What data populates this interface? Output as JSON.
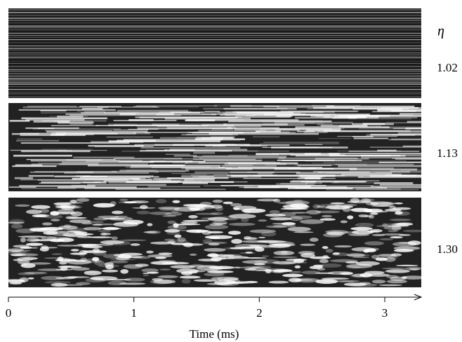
{
  "eta_symbol": "η",
  "panels": [
    {
      "label": "1.02"
    },
    {
      "label": "1.13"
    },
    {
      "label": "1.30"
    }
  ],
  "axis": {
    "label": "Time (ms)",
    "xlim": [
      0,
      3.28
    ],
    "ticks": [
      0,
      1,
      2,
      3
    ]
  }
}
